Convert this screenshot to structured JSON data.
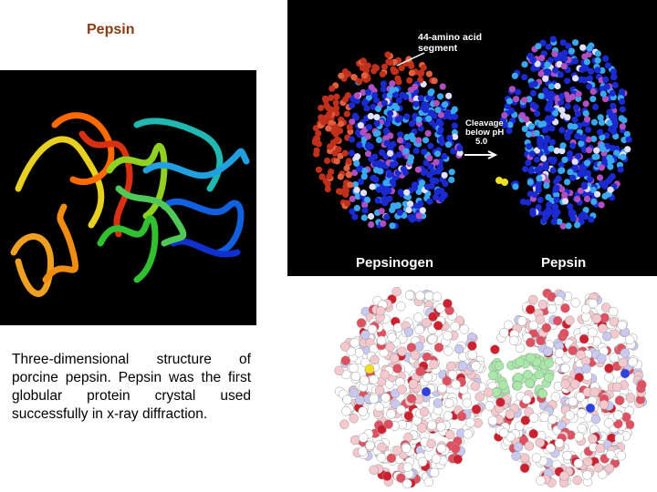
{
  "title": "Pepsin",
  "caption": "Three-dimensional structure of porcine pepsin. Pepsin was the first globular protein crystal used successfully in x-ray diffraction.",
  "structure_figure": {
    "segment_note": [
      "44-amino acid",
      "segment"
    ],
    "cleavage_note": [
      "Cleavage",
      "below pH",
      "5.0"
    ],
    "labels": [
      "Pepsinogen",
      "Pepsin"
    ]
  }
}
